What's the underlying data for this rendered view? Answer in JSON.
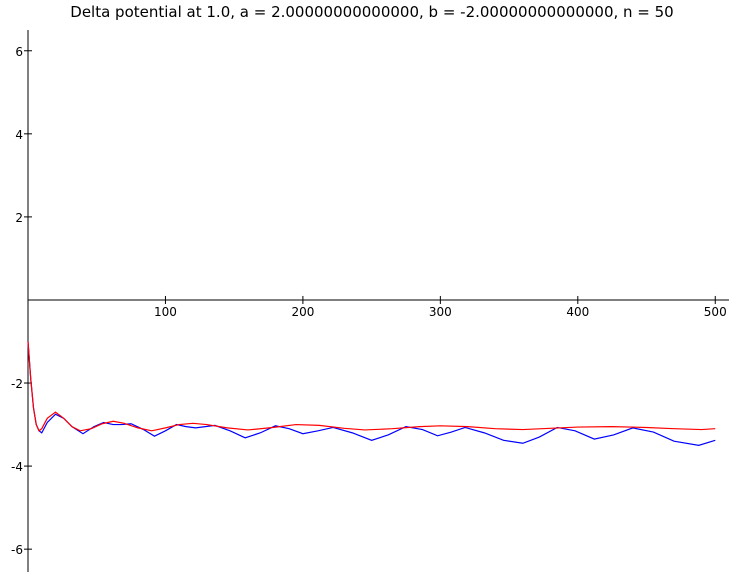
{
  "chart_data": {
    "type": "line",
    "title": "Delta potential at 1.0, a = 2.00000000000000, b = -2.00000000000000, n = 50",
    "xlim": [
      0,
      510
    ],
    "ylim": [
      -6.55,
      6.5
    ],
    "xticks": [
      100,
      200,
      300,
      400,
      500
    ],
    "yticks": [
      -6,
      -4,
      -2,
      2,
      4,
      6
    ],
    "grid": false,
    "series": [
      {
        "color": "#0000ff",
        "x": [
          0,
          2,
          4,
          6,
          8,
          10,
          14,
          20,
          26,
          32,
          40,
          48,
          55,
          62,
          68,
          75,
          84,
          92,
          100,
          108,
          115,
          122,
          129,
          136,
          147,
          158,
          169,
          180,
          190,
          200,
          211,
          222,
          236,
          250,
          262,
          275,
          287,
          298,
          308,
          318,
          332,
          346,
          360,
          372,
          385,
          398,
          412,
          426,
          440,
          455,
          470,
          488,
          500
        ],
        "values": [
          -1.0,
          -1.9,
          -2.6,
          -3.0,
          -3.15,
          -3.2,
          -2.95,
          -2.75,
          -2.85,
          -3.05,
          -3.22,
          -3.05,
          -2.95,
          -3.0,
          -3.0,
          -2.98,
          -3.12,
          -3.28,
          -3.15,
          -3.0,
          -3.05,
          -3.08,
          -3.05,
          -3.02,
          -3.15,
          -3.32,
          -3.2,
          -3.03,
          -3.1,
          -3.22,
          -3.15,
          -3.07,
          -3.2,
          -3.38,
          -3.25,
          -3.05,
          -3.12,
          -3.27,
          -3.18,
          -3.07,
          -3.2,
          -3.38,
          -3.45,
          -3.3,
          -3.07,
          -3.15,
          -3.35,
          -3.25,
          -3.08,
          -3.18,
          -3.4,
          -3.5,
          -3.38
        ]
      },
      {
        "color": "#ff0000",
        "x": [
          0,
          2,
          4,
          6,
          8,
          10,
          14,
          20,
          26,
          32,
          38,
          46,
          54,
          62,
          70,
          80,
          90,
          100,
          110,
          120,
          130,
          145,
          160,
          178,
          195,
          212,
          230,
          245,
          265,
          285,
          300,
          320,
          340,
          360,
          380,
          400,
          425,
          450,
          470,
          490,
          500
        ],
        "values": [
          -1.0,
          -1.9,
          -2.6,
          -3.0,
          -3.15,
          -3.1,
          -2.85,
          -2.7,
          -2.85,
          -3.05,
          -3.15,
          -3.1,
          -2.98,
          -2.92,
          -2.97,
          -3.08,
          -3.15,
          -3.08,
          -3.0,
          -2.97,
          -3.0,
          -3.08,
          -3.13,
          -3.07,
          -3.0,
          -3.02,
          -3.09,
          -3.13,
          -3.1,
          -3.05,
          -3.03,
          -3.05,
          -3.1,
          -3.12,
          -3.09,
          -3.06,
          -3.05,
          -3.07,
          -3.1,
          -3.12,
          -3.1
        ]
      }
    ]
  }
}
